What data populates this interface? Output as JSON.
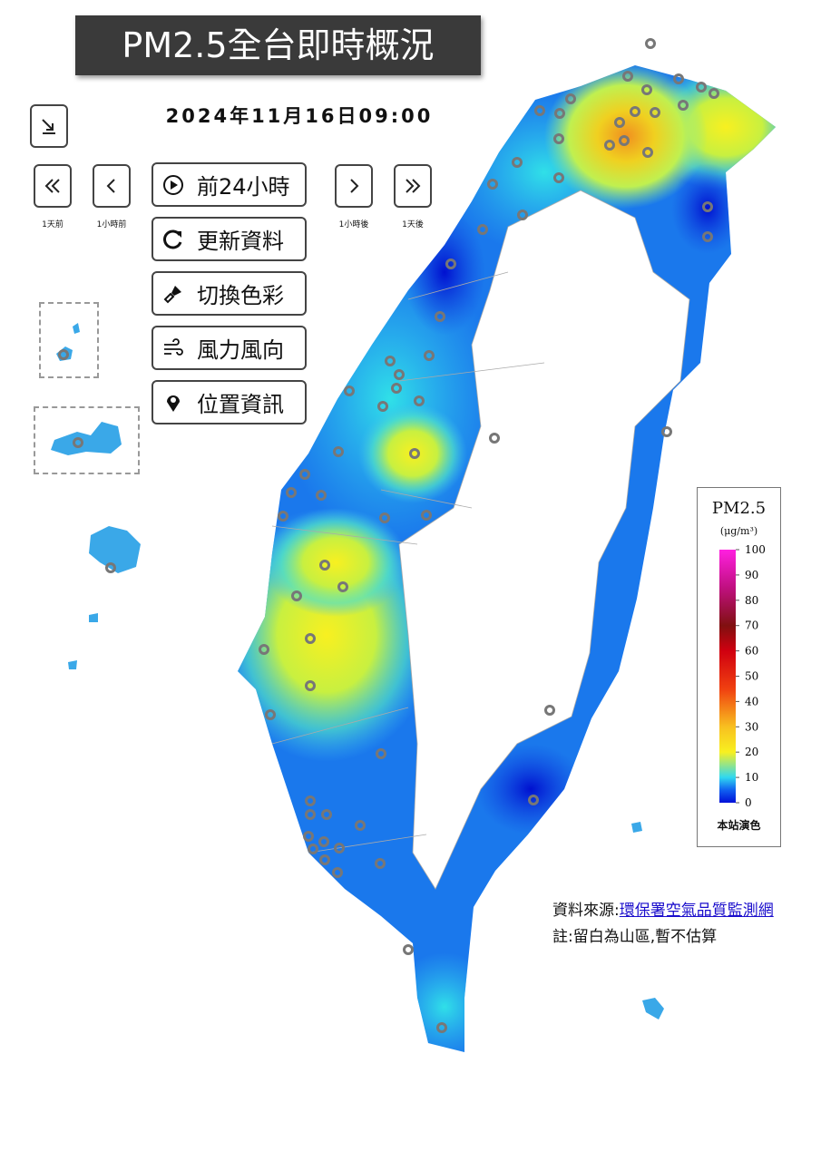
{
  "header": {
    "title": "PM2.5全台即時概況",
    "datetime": "2024年11月16日09:00"
  },
  "time_nav": [
    "1天前",
    "1小時前",
    "1小時後",
    "1天後"
  ],
  "actions": [
    "前24小時",
    "更新資料",
    "切換色彩",
    "風力風向",
    "位置資訊"
  ],
  "legend": {
    "title": "PM2.5",
    "unit": "(μg/m³)",
    "ticks": [
      0,
      10,
      20,
      30,
      40,
      50,
      60,
      70,
      80,
      90,
      100
    ],
    "footer": "本站演色"
  },
  "footer": {
    "source_label": "資料來源:",
    "source_link": "環保署空氣品質監測網",
    "note": "註:留白為山區,暫不估算"
  }
}
